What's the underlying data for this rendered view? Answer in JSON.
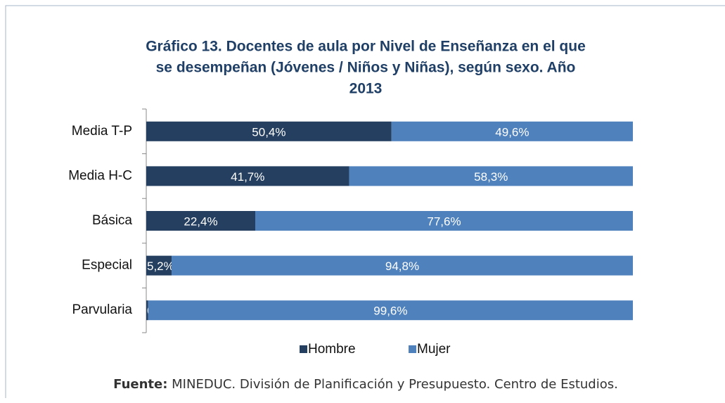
{
  "chart_data": {
    "type": "stacked-barh",
    "title": [
      "Gráfico 13. Docentes  de aula por Nivel de Enseñanza en el que",
      "se desempeñan (Jóvenes / Niños y Niñas), según sexo. Año",
      "2013"
    ],
    "categories": [
      "Media T-P",
      "Media H-C",
      "Básica",
      "Especial",
      "Parvularia"
    ],
    "series": [
      {
        "name": "Hombre",
        "color": "#243f60",
        "values": [
          50.4,
          41.7,
          22.4,
          5.2,
          0.4
        ],
        "value_labels": [
          "50,4%",
          "41,7%",
          "22,4%",
          "5,2%",
          "0,4%"
        ]
      },
      {
        "name": "Mujer",
        "color": "#4f81bd",
        "values": [
          49.6,
          58.3,
          77.6,
          94.8,
          99.6
        ],
        "value_labels": [
          "49,6%",
          "58,3%",
          "77,6%",
          "94,8%",
          "99,6%"
        ]
      }
    ],
    "xlim": [
      0,
      100
    ],
    "source_label": "Fuente:",
    "source_text": "MINEDUC. División de Planificación y Presupuesto. Centro de Estudios."
  }
}
